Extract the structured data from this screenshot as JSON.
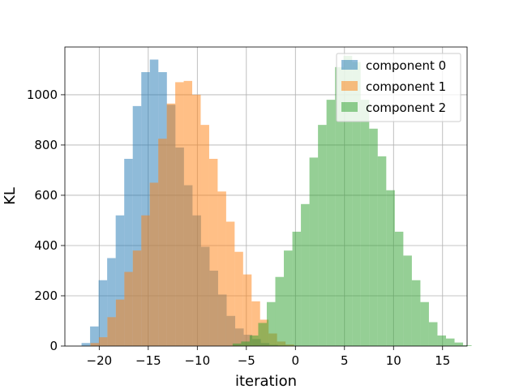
{
  "chart_data": {
    "type": "bar",
    "xlabel": "iteration",
    "ylabel": "KL",
    "xlim": [
      -23.5,
      17.5
    ],
    "ylim": [
      0,
      1190
    ],
    "xticks": [
      -20,
      -15,
      -10,
      -5,
      0,
      5,
      10,
      15
    ],
    "yticks": [
      0,
      200,
      400,
      600,
      800,
      1000
    ],
    "grid": true,
    "legend_position": "top-right",
    "series": [
      {
        "name": "component 0",
        "color": "#1f77b4",
        "opacity": 0.5,
        "bin_start": -21.8,
        "bin_width": 0.87,
        "counts": [
          12,
          78,
          262,
          350,
          520,
          745,
          955,
          1090,
          1140,
          1090,
          960,
          790,
          640,
          520,
          395,
          300,
          205,
          120,
          70,
          45,
          28,
          12,
          5,
          2
        ]
      },
      {
        "name": "component 1",
        "color": "#ff7f0e",
        "opacity": 0.5,
        "bin_start": -20.9,
        "bin_width": 0.865,
        "counts": [
          12,
          35,
          115,
          185,
          295,
          380,
          520,
          650,
          825,
          965,
          1050,
          1055,
          1000,
          880,
          745,
          615,
          495,
          375,
          285,
          178,
          105,
          50,
          18,
          6
        ]
      },
      {
        "name": "component 2",
        "color": "#2ca02c",
        "opacity": 0.5,
        "bin_start": -6.4,
        "bin_width": 0.87,
        "counts": [
          10,
          18,
          42,
          92,
          175,
          275,
          380,
          455,
          565,
          750,
          880,
          980,
          1110,
          1155,
          1130,
          980,
          865,
          755,
          620,
          455,
          360,
          262,
          175,
          95,
          42,
          30,
          14,
          3
        ]
      }
    ]
  }
}
